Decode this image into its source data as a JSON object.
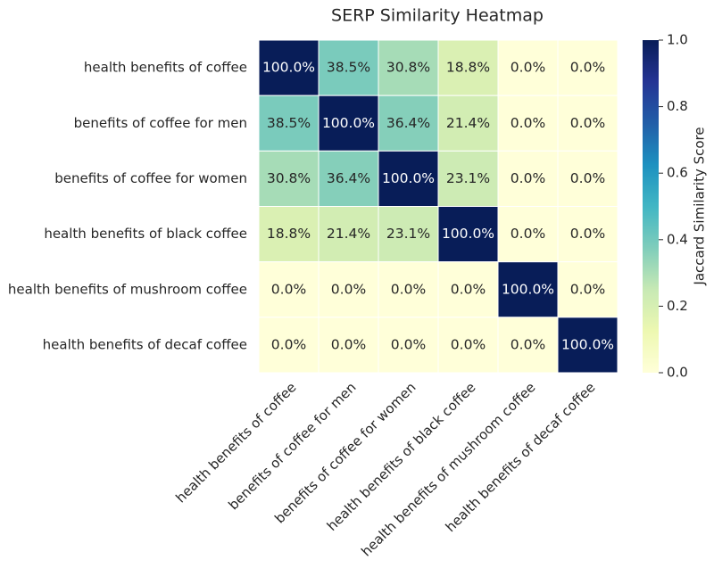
{
  "chart_data": {
    "type": "heatmap",
    "title": "SERP Similarity Heatmap",
    "categories": [
      "health benefits of coffee",
      "benefits of coffee for men",
      "benefits of coffee for women",
      "health benefits of black coffee",
      "health benefits of mushroom coffee",
      "health benefits of decaf coffee"
    ],
    "values": [
      [
        1.0,
        0.385,
        0.308,
        0.188,
        0.0,
        0.0
      ],
      [
        0.385,
        1.0,
        0.364,
        0.214,
        0.0,
        0.0
      ],
      [
        0.308,
        0.364,
        1.0,
        0.231,
        0.0,
        0.0
      ],
      [
        0.188,
        0.214,
        0.231,
        1.0,
        0.0,
        0.0
      ],
      [
        0.0,
        0.0,
        0.0,
        0.0,
        1.0,
        0.0
      ],
      [
        0.0,
        0.0,
        0.0,
        0.0,
        0.0,
        1.0
      ]
    ],
    "value_labels": [
      [
        "100.0%",
        "38.5%",
        "30.8%",
        "18.8%",
        "0.0%",
        "0.0%"
      ],
      [
        "38.5%",
        "100.0%",
        "36.4%",
        "21.4%",
        "0.0%",
        "0.0%"
      ],
      [
        "30.8%",
        "36.4%",
        "100.0%",
        "23.1%",
        "0.0%",
        "0.0%"
      ],
      [
        "18.8%",
        "21.4%",
        "23.1%",
        "100.0%",
        "0.0%",
        "0.0%"
      ],
      [
        "0.0%",
        "0.0%",
        "0.0%",
        "0.0%",
        "100.0%",
        "0.0%"
      ],
      [
        "0.0%",
        "0.0%",
        "0.0%",
        "0.0%",
        "0.0%",
        "100.0%"
      ]
    ],
    "colorbar_label": "Jaccard Similarity Score",
    "zlim": [
      0,
      1
    ],
    "zticks": [
      {
        "value": 0,
        "label": "0.0"
      },
      0.2,
      0.4,
      0.6,
      0.8,
      {
        "value": 1,
        "label": "1.0"
      }
    ],
    "colormap": [
      "#ffffd9",
      "#edf8b1",
      "#c7e9b4",
      "#7fcdbb",
      "#41b6c4",
      "#1d91c0",
      "#225ea8",
      "#253494",
      "#081d58"
    ]
  }
}
